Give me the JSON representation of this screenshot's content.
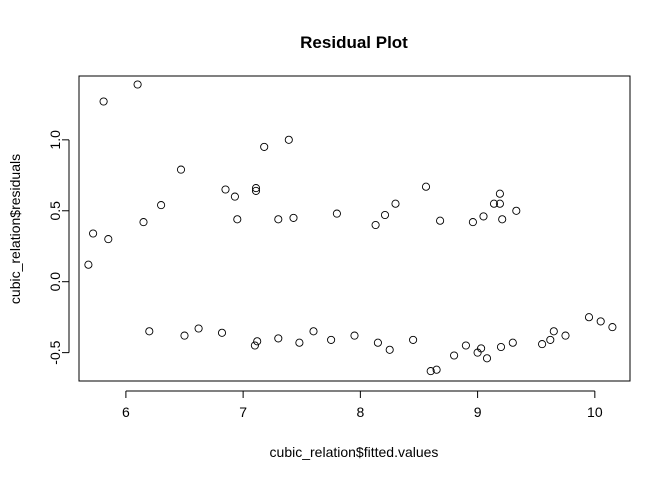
{
  "chart_data": {
    "type": "scatter",
    "title": "Residual Plot",
    "xlabel": "cubic_relation$fitted.values",
    "ylabel": "cubic_relation$residuals",
    "xlim": [
      5.6,
      10.3
    ],
    "ylim": [
      -0.7,
      1.45
    ],
    "x_ticks": [
      6,
      7,
      8,
      9,
      10
    ],
    "y_ticks": [
      -0.5,
      0.0,
      0.5,
      1.0
    ],
    "x_tick_labels": [
      "6",
      "7",
      "8",
      "9",
      "10"
    ],
    "y_tick_labels": [
      "-0.5",
      "0.0",
      "0.5",
      "1.0"
    ],
    "marker": "open-circle",
    "grid": false,
    "legend": "none",
    "series": [
      {
        "color": "#000000",
        "points": [
          [
            5.81,
            1.27
          ],
          [
            6.1,
            1.39
          ],
          [
            7.18,
            0.95
          ],
          [
            7.39,
            1.0
          ],
          [
            6.47,
            0.79
          ],
          [
            8.56,
            0.67
          ],
          [
            6.85,
            0.65
          ],
          [
            7.11,
            0.66
          ],
          [
            7.11,
            0.64
          ],
          [
            6.93,
            0.6
          ],
          [
            9.19,
            0.62
          ],
          [
            6.3,
            0.54
          ],
          [
            9.19,
            0.55
          ],
          [
            9.14,
            0.55
          ],
          [
            9.33,
            0.5
          ],
          [
            6.95,
            0.44
          ],
          [
            7.3,
            0.44
          ],
          [
            7.43,
            0.45
          ],
          [
            8.21,
            0.47
          ],
          [
            8.3,
            0.55
          ],
          [
            8.68,
            0.43
          ],
          [
            8.96,
            0.42
          ],
          [
            9.05,
            0.46
          ],
          [
            9.21,
            0.44
          ],
          [
            7.8,
            0.48
          ],
          [
            8.13,
            0.4
          ],
          [
            6.15,
            0.42
          ],
          [
            5.68,
            0.12
          ],
          [
            5.72,
            0.34
          ],
          [
            5.85,
            0.3
          ],
          [
            10.15,
            -0.32
          ],
          [
            10.05,
            -0.28
          ],
          [
            9.95,
            -0.25
          ],
          [
            8.6,
            -0.63
          ],
          [
            8.65,
            -0.62
          ],
          [
            7.1,
            -0.45
          ],
          [
            7.12,
            -0.42
          ],
          [
            7.48,
            -0.43
          ],
          [
            9.0,
            -0.5
          ],
          [
            9.03,
            -0.47
          ],
          [
            9.08,
            -0.54
          ],
          [
            8.8,
            -0.52
          ],
          [
            8.25,
            -0.48
          ],
          [
            6.2,
            -0.35
          ],
          [
            6.5,
            -0.38
          ],
          [
            7.3,
            -0.4
          ],
          [
            7.75,
            -0.41
          ],
          [
            9.3,
            -0.43
          ],
          [
            9.2,
            -0.46
          ],
          [
            9.55,
            -0.44
          ],
          [
            9.62,
            -0.41
          ],
          [
            9.75,
            -0.38
          ],
          [
            9.65,
            -0.35
          ],
          [
            8.15,
            -0.43
          ],
          [
            7.95,
            -0.38
          ],
          [
            6.82,
            -0.36
          ],
          [
            6.62,
            -0.33
          ],
          [
            7.6,
            -0.35
          ],
          [
            8.45,
            -0.41
          ],
          [
            8.9,
            -0.45
          ]
        ]
      }
    ]
  }
}
